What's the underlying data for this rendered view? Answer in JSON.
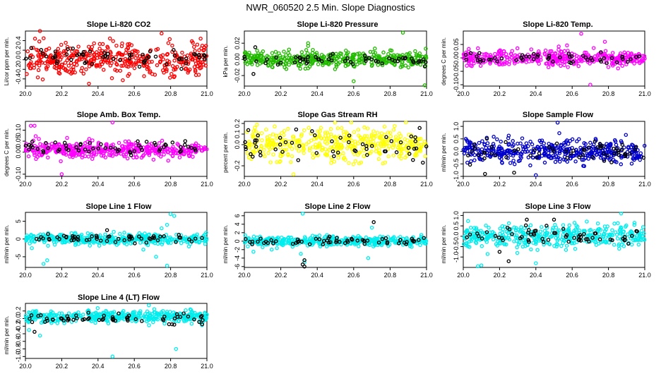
{
  "figure_title": "NWR_060520  2.5 Min. Slope Diagnostics",
  "chart_data": [
    {
      "type": "scatter",
      "title": "Slope Li-820 CO2",
      "ylabel": "Li/cor ppm per min.",
      "xlim": [
        20.0,
        21.0
      ],
      "ylim": [
        -0.55,
        0.6
      ],
      "xticks": [
        20.0,
        20.2,
        20.4,
        20.6,
        20.8,
        21.0
      ],
      "yticks": [
        -0.4,
        -0.2,
        0.0,
        0.2,
        0.4
      ],
      "ytick_labels": [
        "-0.4",
        "-0.2",
        "0.0",
        "0.2",
        "0.4"
      ],
      "series": [
        {
          "name": "points",
          "color": "#ff0000",
          "n": 420,
          "center": 0.0,
          "spread": 0.22,
          "outliers": [
            [
              20.08,
              0.6
            ],
            [
              20.35,
              -0.5
            ],
            [
              20.75,
              0.55
            ]
          ]
        },
        {
          "name": "highlight",
          "color": "#000000",
          "n": 60,
          "center": 0.05,
          "spread": 0.15,
          "outliers": []
        }
      ]
    },
    {
      "type": "scatter",
      "title": "Slope Li-820 Pressure",
      "ylabel": "kPa per min.",
      "xlim": [
        20.0,
        21.0
      ],
      "ylim": [
        -0.033,
        0.035
      ],
      "xticks": [
        20.0,
        20.2,
        20.4,
        20.6,
        20.8,
        21.0
      ],
      "yticks": [
        -0.02,
        0.0,
        0.02
      ],
      "ytick_labels": [
        "-0.02",
        "0.00",
        "0.02"
      ],
      "series": [
        {
          "name": "points",
          "color": "#22bb00",
          "n": 420,
          "center": 0.0,
          "spread": 0.006,
          "outliers": [
            [
              20.87,
              0.033
            ],
            [
              20.6,
              -0.027
            ],
            [
              20.99,
              -0.032
            ],
            [
              20.35,
              0.02
            ]
          ]
        },
        {
          "name": "highlight",
          "color": "#000000",
          "n": 55,
          "center": 0.0,
          "spread": 0.004,
          "outliers": [
            [
              20.05,
              -0.018
            ],
            [
              20.06,
              0.015
            ]
          ]
        }
      ]
    },
    {
      "type": "scatter",
      "title": "Slope Li-820 Temp.",
      "ylabel": "degrees C per min.",
      "xlim": [
        20.0,
        21.0
      ],
      "ylim": [
        -0.105,
        0.1
      ],
      "xticks": [
        20.0,
        20.2,
        20.4,
        20.6,
        20.8,
        21.0
      ],
      "yticks": [
        -0.1,
        -0.05,
        0.0,
        0.05
      ],
      "ytick_labels": [
        "-0.10",
        "-0.05",
        "0.00",
        "0.05"
      ],
      "series": [
        {
          "name": "points",
          "color": "#ff00ff",
          "n": 420,
          "center": 0.0,
          "spread": 0.018,
          "outliers": [
            [
              20.7,
              -0.1
            ],
            [
              20.65,
              0.09
            ],
            [
              20.78,
              0.06
            ]
          ]
        },
        {
          "name": "highlight",
          "color": "#000000",
          "n": 55,
          "center": 0.0,
          "spread": 0.015,
          "outliers": []
        }
      ]
    },
    {
      "type": "scatter",
      "title": "Slope Amb. Box Temp.",
      "ylabel": "degrees C per min.",
      "xlim": [
        20.0,
        21.0
      ],
      "ylim": [
        -0.11,
        0.14
      ],
      "xticks": [
        20.0,
        20.2,
        20.4,
        20.6,
        20.8,
        21.0
      ],
      "yticks": [
        -0.1,
        0.0,
        0.05,
        0.1
      ],
      "ytick_labels": [
        "-0.10",
        "0.00",
        "0.05",
        "0.10"
      ],
      "series": [
        {
          "name": "points",
          "color": "#ff00ff",
          "n": 420,
          "center": 0.01,
          "spread": 0.025,
          "outliers": [
            [
              20.03,
              0.12
            ],
            [
              20.05,
              0.12
            ],
            [
              20.48,
              0.135
            ],
            [
              20.2,
              -0.1
            ]
          ]
        },
        {
          "name": "highlight",
          "color": "#000000",
          "n": 60,
          "center": 0.02,
          "spread": 0.02,
          "outliers": []
        }
      ]
    },
    {
      "type": "scatter",
      "title": "Slope Gas Stream RH",
      "ylabel": "percent per min.",
      "xlim": [
        20.0,
        21.0
      ],
      "ylim": [
        -0.3,
        0.22
      ],
      "xticks": [
        20.0,
        20.2,
        20.4,
        20.6,
        20.8,
        21.0
      ],
      "yticks": [
        -0.2,
        0.0,
        0.1,
        0.2
      ],
      "ytick_labels": [
        "-0.2",
        "0.0",
        "0.1",
        "0.2"
      ],
      "series": [
        {
          "name": "points",
          "color": "#ffff00",
          "n": 420,
          "center": 0.0,
          "spread": 0.1,
          "outliers": [
            [
              20.27,
              -0.28
            ]
          ]
        },
        {
          "name": "highlight",
          "color": "#000000",
          "n": 55,
          "center": 0.0,
          "spread": 0.08,
          "outliers": [
            [
              20.98,
              -0.17
            ]
          ]
        }
      ]
    },
    {
      "type": "scatter",
      "title": "Slope Sample Flow",
      "ylabel": "ml/min per min.",
      "xlim": [
        20.0,
        21.0
      ],
      "ylim": [
        -1.0,
        1.2
      ],
      "xticks": [
        20.0,
        20.2,
        20.4,
        20.6,
        20.8,
        21.0
      ],
      "yticks": [
        -1.0,
        -0.5,
        0.0,
        0.5,
        1.0
      ],
      "ytick_labels": [
        "-1.0",
        "-0.5",
        "0.0",
        "0.5",
        "1.0"
      ],
      "series": [
        {
          "name": "points",
          "color": "#0000cc",
          "n": 420,
          "center": 0.0,
          "spread": 0.3,
          "outliers": [
            [
              20.52,
              1.15
            ],
            [
              20.4,
              -0.95
            ]
          ]
        },
        {
          "name": "highlight",
          "color": "#000000",
          "n": 60,
          "center": 0.0,
          "spread": 0.3,
          "outliers": [
            [
              20.12,
              -0.9
            ],
            [
              20.28,
              -0.85
            ]
          ]
        }
      ]
    },
    {
      "type": "scatter",
      "title": "Slope Line 1 Flow",
      "ylabel": "ml/min per min.",
      "xlim": [
        20.0,
        21.0
      ],
      "ylim": [
        -8.0,
        7.5
      ],
      "xticks": [
        20.0,
        20.2,
        20.4,
        20.6,
        20.8,
        21.0
      ],
      "yticks": [
        -5,
        0,
        5
      ],
      "ytick_labels": [
        "-5",
        "0",
        "5"
      ],
      "series": [
        {
          "name": "points",
          "color": "#00eeee",
          "n": 420,
          "center": 0.0,
          "spread": 1.0,
          "outliers": [
            [
              20.1,
              -7
            ],
            [
              20.12,
              -6
            ],
            [
              20.75,
              3
            ],
            [
              20.78,
              4
            ],
            [
              20.8,
              7
            ],
            [
              20.82,
              6.5
            ],
            [
              20.72,
              -5
            ],
            [
              20.65,
              -3
            ],
            [
              20.78,
              -7.5
            ]
          ]
        },
        {
          "name": "highlight",
          "color": "#000000",
          "n": 60,
          "center": 0.2,
          "spread": 0.8,
          "outliers": [
            [
              20.45,
              2.5
            ]
          ]
        }
      ]
    },
    {
      "type": "scatter",
      "title": "Slope Line 2 Flow",
      "ylabel": "ml/min per min.",
      "xlim": [
        20.0,
        21.0
      ],
      "ylim": [
        -6.2,
        6.8
      ],
      "xticks": [
        20.0,
        20.2,
        20.4,
        20.6,
        20.8,
        21.0
      ],
      "yticks": [
        -6,
        -4,
        -2,
        0,
        2,
        4,
        6
      ],
      "ytick_labels": [
        "-6",
        "-4",
        "-2",
        "0",
        "2",
        "4",
        "6"
      ],
      "series": [
        {
          "name": "points",
          "color": "#00eeee",
          "n": 420,
          "center": 0.0,
          "spread": 0.7,
          "outliers": [
            [
              20.32,
              6.5
            ],
            [
              20.31,
              -3
            ],
            [
              20.33,
              -5
            ],
            [
              20.68,
              -4
            ],
            [
              20.7,
              3.2
            ],
            [
              20.05,
              -2.5
            ],
            [
              20.15,
              -2
            ]
          ]
        },
        {
          "name": "highlight",
          "color": "#000000",
          "n": 60,
          "center": 0.0,
          "spread": 0.6,
          "outliers": [
            [
              20.32,
              -5.5
            ],
            [
              20.33,
              -6
            ],
            [
              20.33,
              -4.5
            ],
            [
              20.71,
              4.5
            ]
          ]
        }
      ]
    },
    {
      "type": "scatter",
      "title": "Slope Line 3 Flow",
      "ylabel": "ml/min per min.",
      "xlim": [
        20.0,
        21.0
      ],
      "ylim": [
        -1.5,
        1.15
      ],
      "xticks": [
        20.0,
        20.2,
        20.4,
        20.6,
        20.8,
        21.0
      ],
      "yticks": [
        -1.0,
        -0.5,
        0.0,
        0.5,
        1.0
      ],
      "ytick_labels": [
        "-1.0",
        "-0.5",
        "0.0",
        "0.5",
        "1.0"
      ],
      "series": [
        {
          "name": "points",
          "color": "#00eeee",
          "n": 420,
          "center": 0.0,
          "spread": 0.35,
          "outliers": [
            [
              20.08,
              -1.45
            ],
            [
              20.1,
              -1.4
            ],
            [
              20.87,
              1.1
            ],
            [
              20.4,
              -1.3
            ]
          ]
        },
        {
          "name": "highlight",
          "color": "#000000",
          "n": 60,
          "center": 0.0,
          "spread": 0.3,
          "outliers": [
            [
              20.2,
              -0.75
            ],
            [
              20.25,
              -1.2
            ],
            [
              20.35,
              0.8
            ],
            [
              20.5,
              0.8
            ]
          ]
        }
      ]
    },
    {
      "type": "scatter",
      "title": "Slope Line 4 (LT) Flow",
      "ylabel": "ml/min per min.",
      "xlim": [
        20.0,
        21.0
      ],
      "ylim": [
        -1.05,
        0.4
      ],
      "xticks": [
        20.0,
        20.2,
        20.4,
        20.6,
        20.8,
        21.0
      ],
      "yticks": [
        -1.0,
        -0.8,
        -0.6,
        -0.4,
        -0.2,
        0.0,
        0.2
      ],
      "ytick_labels": [
        "-1.0",
        "-0.8",
        "-0.6",
        "-0.4",
        "-0.2",
        "0.0",
        "0.2"
      ],
      "series": [
        {
          "name": "points",
          "color": "#00eeee",
          "n": 420,
          "center": 0.05,
          "spread": 0.1,
          "outliers": [
            [
              20.02,
              -0.3
            ],
            [
              20.08,
              -0.45
            ],
            [
              20.48,
              -1.0
            ],
            [
              20.83,
              -0.8
            ],
            [
              20.68,
              0.35
            ]
          ]
        },
        {
          "name": "highlight",
          "color": "#000000",
          "n": 60,
          "center": 0.0,
          "spread": 0.1,
          "outliers": [
            [
              20.05,
              -0.35
            ]
          ]
        }
      ]
    }
  ]
}
